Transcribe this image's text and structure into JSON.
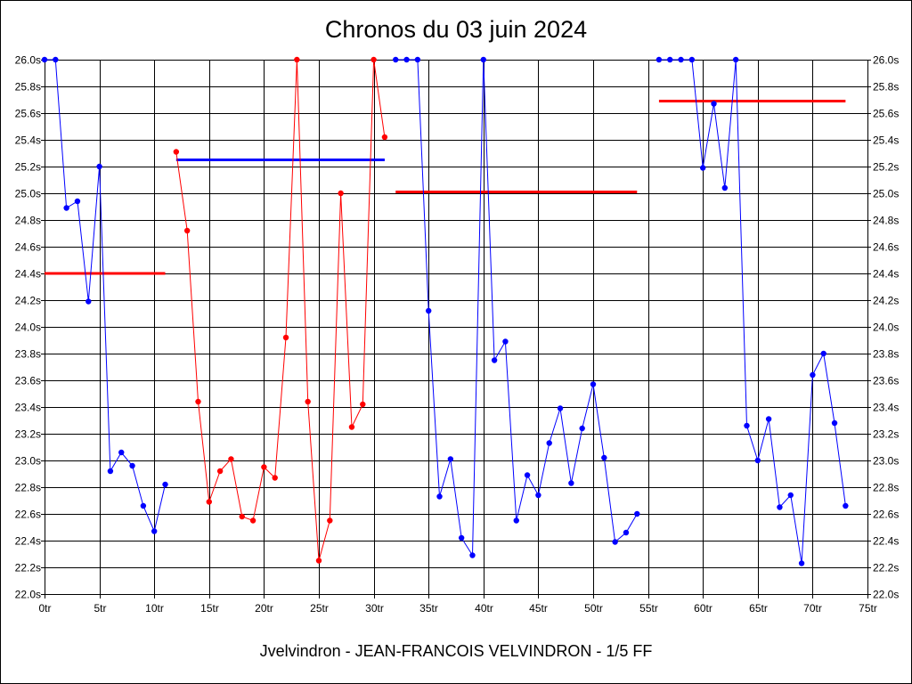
{
  "chart_data": {
    "type": "line",
    "title": "Chronos du 03 juin 2024",
    "caption": "Jvelvindron - JEAN-FRANCOIS VELVINDRON - 1/5 FF",
    "xlim": [
      0,
      75
    ],
    "ylim": [
      22.0,
      26.0
    ],
    "x_ticks": [
      0,
      5,
      10,
      15,
      20,
      25,
      30,
      35,
      40,
      45,
      50,
      55,
      60,
      65,
      70,
      75
    ],
    "x_tick_labels": [
      "0tr",
      "5tr",
      "10tr",
      "15tr",
      "20tr",
      "25tr",
      "30tr",
      "35tr",
      "40tr",
      "45tr",
      "50tr",
      "55tr",
      "60tr",
      "65tr",
      "70tr",
      "75tr"
    ],
    "y_ticks": [
      22.0,
      22.2,
      22.4,
      22.6,
      22.8,
      23.0,
      23.2,
      23.4,
      23.6,
      23.8,
      24.0,
      24.2,
      24.4,
      24.6,
      24.8,
      25.0,
      25.2,
      25.4,
      25.6,
      25.8,
      26.0
    ],
    "y_tick_labels": [
      "22.0s",
      "22.2s",
      "22.4s",
      "22.6s",
      "22.8s",
      "23.0s",
      "23.2s",
      "23.4s",
      "23.6s",
      "23.8s",
      "24.0s",
      "24.2s",
      "24.4s",
      "24.6s",
      "24.8s",
      "25.0s",
      "25.2s",
      "25.4s",
      "25.6s",
      "25.8s",
      "26.0s"
    ],
    "grid": true,
    "series": [
      {
        "color": "#0000ff",
        "x": [
          0,
          1,
          2,
          3,
          4,
          5,
          6,
          7,
          8,
          9,
          10,
          11
        ],
        "values": [
          26.0,
          26.0,
          24.89,
          24.94,
          24.19,
          25.2,
          22.92,
          23.06,
          22.96,
          22.66,
          22.47,
          22.82
        ]
      },
      {
        "color": "#ff0000",
        "x": [
          12,
          13,
          14,
          15,
          16,
          17,
          18,
          19,
          20,
          21,
          22,
          23,
          24,
          25,
          26,
          27,
          28,
          29,
          30,
          31
        ],
        "values": [
          25.31,
          24.72,
          23.44,
          22.69,
          22.92,
          23.01,
          22.58,
          22.55,
          22.95,
          22.87,
          23.92,
          26.0,
          23.44,
          22.25,
          22.55,
          25.0,
          23.25,
          23.42,
          26.0,
          25.42
        ]
      },
      {
        "color": "#0000ff",
        "x": [
          32,
          33,
          34,
          35,
          36,
          37,
          38,
          39,
          40,
          41,
          42,
          43,
          44,
          45,
          46,
          47,
          48,
          49,
          50,
          51,
          52,
          53,
          54
        ],
        "values": [
          26.0,
          26.0,
          26.0,
          24.12,
          22.73,
          23.01,
          22.42,
          22.29,
          26.0,
          23.75,
          23.89,
          22.55,
          22.89,
          22.74,
          23.13,
          23.39,
          22.83,
          23.24,
          23.57,
          23.02,
          22.39,
          22.46,
          22.6
        ]
      },
      {
        "color": "#0000ff",
        "x": [
          56,
          57,
          58,
          59,
          60,
          61,
          62,
          63,
          64,
          65,
          66,
          67,
          68,
          69,
          70,
          71,
          72,
          73
        ],
        "values": [
          26.0,
          26.0,
          26.0,
          26.0,
          25.19,
          25.67,
          25.04,
          26.0,
          23.26,
          23.0,
          23.31,
          22.65,
          22.74,
          22.23,
          23.64,
          23.8,
          23.28,
          22.66
        ]
      }
    ],
    "average_lines": [
      {
        "color": "#ff0000",
        "x_start": 0,
        "x_end": 11,
        "value": 24.4
      },
      {
        "color": "#0000ff",
        "x_start": 12,
        "x_end": 31,
        "value": 25.25
      },
      {
        "color": "#ff0000",
        "x_start": 32,
        "x_end": 54,
        "value": 25.01
      },
      {
        "color": "#ff0000",
        "x_start": 56,
        "x_end": 73,
        "value": 25.69
      }
    ]
  }
}
